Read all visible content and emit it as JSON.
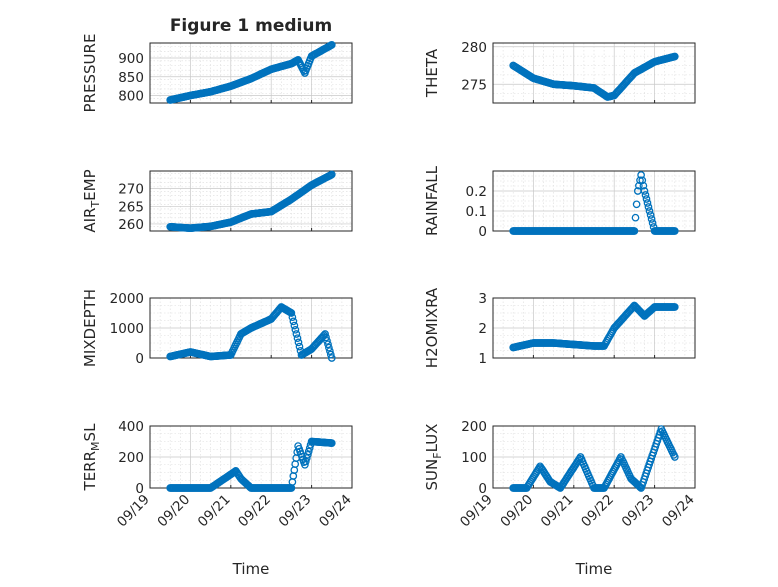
{
  "figure": {
    "xlabel": "Time"
  },
  "chart_data": [
    {
      "type": "scatter",
      "title": "Figure 1 medium",
      "ylabel": "PRESSURE",
      "ylabel_sub": null,
      "xlim": [
        "09/19",
        "09/24"
      ],
      "xticks": [
        "09/19",
        "09/20",
        "09/21",
        "09/22",
        "09/23",
        "09/24"
      ],
      "ylim": [
        780,
        940
      ],
      "yticks": [
        800,
        850,
        900
      ],
      "grid": true,
      "minor_grid": true,
      "x": [
        "09/19 12:00",
        "09/20 00:00",
        "09/20 12:00",
        "09/21 00:00",
        "09/21 12:00",
        "09/22 00:00",
        "09/22 12:00",
        "09/22 16:00",
        "09/22 20:00",
        "09/23 00:00",
        "09/23 12:00"
      ],
      "y": [
        788,
        800,
        810,
        825,
        845,
        870,
        885,
        895,
        860,
        905,
        935
      ]
    },
    {
      "type": "scatter",
      "title": "",
      "ylabel": "THETA",
      "ylabel_sub": null,
      "xlim": [
        "09/19",
        "09/24"
      ],
      "xticks": [
        "09/19",
        "09/20",
        "09/21",
        "09/22",
        "09/23",
        "09/24"
      ],
      "ylim": [
        272.5,
        280.5
      ],
      "yticks": [
        275,
        280
      ],
      "grid": true,
      "minor_grid": true,
      "x": [
        "09/19 12:00",
        "09/20 00:00",
        "09/20 12:00",
        "09/21 00:00",
        "09/21 12:00",
        "09/21 20:00",
        "09/22 00:00",
        "09/22 12:00",
        "09/23 00:00",
        "09/23 12:00"
      ],
      "y": [
        277.5,
        275.8,
        275.0,
        274.8,
        274.5,
        273.3,
        273.5,
        276.5,
        278.0,
        278.7
      ]
    },
    {
      "type": "scatter",
      "title": "",
      "ylabel": "AIR",
      "ylabel_sub": "T",
      "ylabel_suffix": "EMP",
      "xlim": [
        "09/19",
        "09/24"
      ],
      "xticks": [
        "09/19",
        "09/20",
        "09/21",
        "09/22",
        "09/23",
        "09/24"
      ],
      "ylim": [
        258,
        275
      ],
      "yticks": [
        260,
        265,
        270
      ],
      "grid": true,
      "minor_grid": true,
      "x": [
        "09/19 12:00",
        "09/20 00:00",
        "09/20 12:00",
        "09/21 00:00",
        "09/21 12:00",
        "09/22 00:00",
        "09/22 12:00",
        "09/23 00:00",
        "09/23 12:00"
      ],
      "y": [
        259.2,
        258.8,
        259.3,
        260.5,
        262.8,
        263.5,
        267.0,
        271.0,
        274.0
      ]
    },
    {
      "type": "scatter",
      "title": "",
      "ylabel": "RAINFALL",
      "ylabel_sub": null,
      "xlim": [
        "09/19",
        "09/24"
      ],
      "xticks": [
        "09/19",
        "09/20",
        "09/21",
        "09/22",
        "09/23",
        "09/24"
      ],
      "ylim": [
        0,
        0.3
      ],
      "yticks": [
        0,
        0.1,
        0.2
      ],
      "grid": true,
      "minor_grid": true,
      "x": [
        "09/19 12:00",
        "09/20 12:00",
        "09/21 12:00",
        "09/22 12:00",
        "09/22 14:00",
        "09/22 16:00",
        "09/22 18:00",
        "09/23 00:00",
        "09/23 12:00"
      ],
      "y": [
        0,
        0,
        0,
        0,
        0.2,
        0.28,
        0.2,
        0,
        0
      ]
    },
    {
      "type": "scatter",
      "title": "",
      "ylabel": "MIXDEPTH",
      "ylabel_sub": null,
      "xlim": [
        "09/19",
        "09/24"
      ],
      "xticks": [
        "09/19",
        "09/20",
        "09/21",
        "09/22",
        "09/23",
        "09/24"
      ],
      "ylim": [
        0,
        2000
      ],
      "yticks": [
        0,
        1000,
        2000
      ],
      "grid": true,
      "minor_grid": true,
      "x": [
        "09/19 12:00",
        "09/20 00:00",
        "09/20 12:00",
        "09/21 00:00",
        "09/21 06:00",
        "09/21 12:00",
        "09/22 00:00",
        "09/22 06:00",
        "09/22 12:00",
        "09/22 18:00",
        "09/23 00:00",
        "09/23 08:00",
        "09/23 12:00"
      ],
      "y": [
        50,
        200,
        50,
        100,
        800,
        1000,
        1300,
        1700,
        1500,
        100,
        300,
        800,
        0
      ]
    },
    {
      "type": "scatter",
      "title": "",
      "ylabel": "H2OMIXRA",
      "ylabel_sub": null,
      "xlim": [
        "09/19",
        "09/24"
      ],
      "xticks": [
        "09/19",
        "09/20",
        "09/21",
        "09/22",
        "09/23",
        "09/24"
      ],
      "ylim": [
        1,
        3
      ],
      "yticks": [
        1,
        2,
        3
      ],
      "grid": true,
      "minor_grid": true,
      "x": [
        "09/19 12:00",
        "09/20 00:00",
        "09/20 12:00",
        "09/21 00:00",
        "09/21 12:00",
        "09/21 18:00",
        "09/22 00:00",
        "09/22 12:00",
        "09/22 18:00",
        "09/23 00:00",
        "09/23 12:00"
      ],
      "y": [
        1.35,
        1.5,
        1.5,
        1.45,
        1.4,
        1.4,
        2.0,
        2.75,
        2.4,
        2.7,
        2.7
      ]
    },
    {
      "type": "scatter",
      "title": "",
      "ylabel": "TERR",
      "ylabel_sub": "M",
      "ylabel_suffix": "SL",
      "xlim": [
        "09/19",
        "09/24"
      ],
      "xticks": [
        "09/19",
        "09/20",
        "09/21",
        "09/22",
        "09/23",
        "09/24"
      ],
      "ylim": [
        0,
        400
      ],
      "yticks": [
        0,
        200,
        400
      ],
      "grid": true,
      "minor_grid": true,
      "x": [
        "09/19 12:00",
        "09/20 12:00",
        "09/21 03:00",
        "09/21 06:00",
        "09/21 12:00",
        "09/22 12:00",
        "09/22 16:00",
        "09/22 20:00",
        "09/23 00:00",
        "09/23 12:00"
      ],
      "y": [
        0,
        0,
        110,
        60,
        0,
        0,
        270,
        150,
        300,
        290
      ]
    },
    {
      "type": "scatter",
      "title": "",
      "ylabel": "SUN",
      "ylabel_sub": "F",
      "ylabel_suffix": "LUX",
      "xlim": [
        "09/19",
        "09/24"
      ],
      "xticks": [
        "09/19",
        "09/20",
        "09/21",
        "09/22",
        "09/23",
        "09/24"
      ],
      "ylim": [
        0,
        200
      ],
      "yticks": [
        0,
        100,
        200
      ],
      "grid": true,
      "minor_grid": true,
      "x": [
        "09/19 12:00",
        "09/19 20:00",
        "09/20 04:00",
        "09/20 10:00",
        "09/20 16:00",
        "09/21 04:00",
        "09/21 12:00",
        "09/21 18:00",
        "09/22 04:00",
        "09/22 10:00",
        "09/22 16:00",
        "09/23 04:00",
        "09/23 12:00"
      ],
      "y": [
        0,
        0,
        70,
        20,
        0,
        100,
        0,
        0,
        100,
        30,
        0,
        190,
        100
      ]
    }
  ]
}
